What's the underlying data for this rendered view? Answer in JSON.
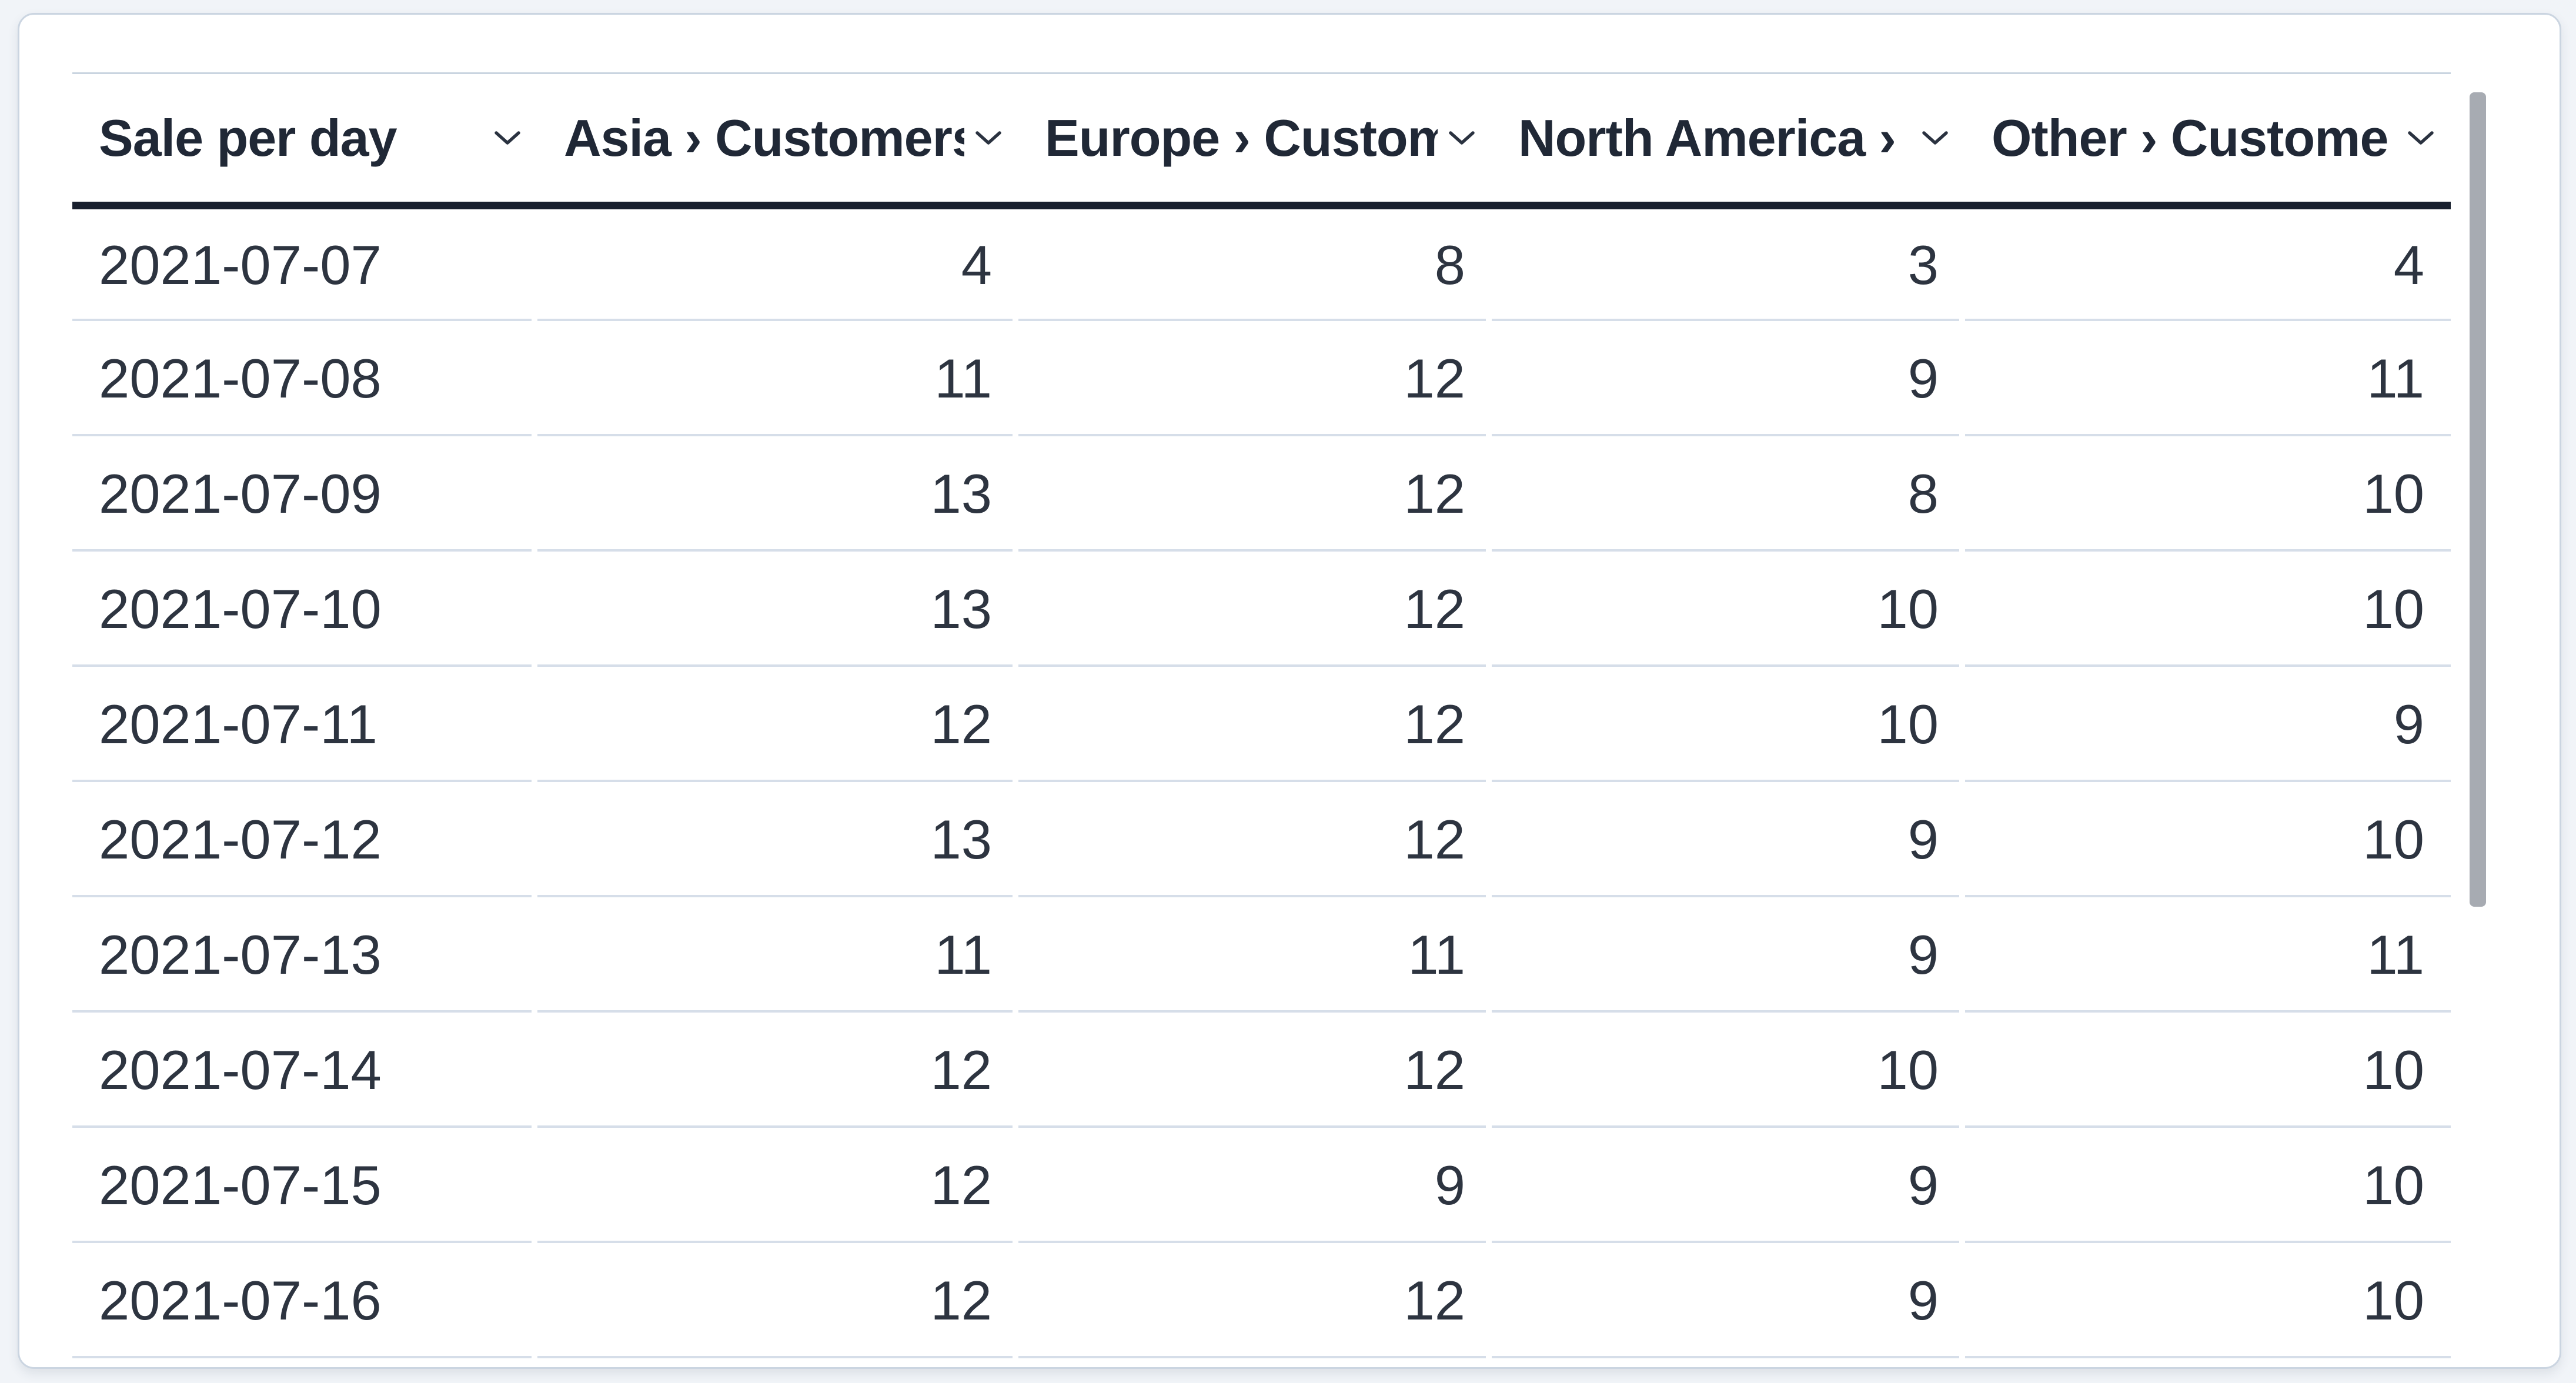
{
  "colors": {
    "background": "#F1F4F8",
    "card_border": "#CBD5E1",
    "header_topline": "#C9D4E0",
    "header_underline": "#19202E",
    "row_separator": "#D6DEE9",
    "header_text": "#202836",
    "body_text": "#2D3440",
    "chevron": "#2A3240",
    "scrollbar_thumb": "#A7ABB2"
  },
  "icons": {
    "header_sort": "chevron-down-icon"
  },
  "table": {
    "columns": [
      {
        "id": "sale-per-day",
        "label": "Sale per day",
        "align": "left"
      },
      {
        "id": "asia-customers",
        "label": "Asia › Customers",
        "align": "right"
      },
      {
        "id": "europe-customers",
        "label": "Europe › Custom",
        "align": "right"
      },
      {
        "id": "north-america-customers",
        "label": "North America ›",
        "align": "right"
      },
      {
        "id": "other-customers",
        "label": "Other › Custome",
        "align": "right"
      }
    ],
    "rows": [
      [
        "2021-07-07",
        "4",
        "8",
        "3",
        "4"
      ],
      [
        "2021-07-08",
        "11",
        "12",
        "9",
        "11"
      ],
      [
        "2021-07-09",
        "13",
        "12",
        "8",
        "10"
      ],
      [
        "2021-07-10",
        "13",
        "12",
        "10",
        "10"
      ],
      [
        "2021-07-11",
        "12",
        "12",
        "10",
        "9"
      ],
      [
        "2021-07-12",
        "13",
        "12",
        "9",
        "10"
      ],
      [
        "2021-07-13",
        "11",
        "11",
        "9",
        "11"
      ],
      [
        "2021-07-14",
        "12",
        "12",
        "10",
        "10"
      ],
      [
        "2021-07-15",
        "12",
        "9",
        "9",
        "10"
      ],
      [
        "2021-07-16",
        "12",
        "12",
        "9",
        "10"
      ]
    ]
  },
  "scrollbar": {
    "orientation": "vertical"
  }
}
